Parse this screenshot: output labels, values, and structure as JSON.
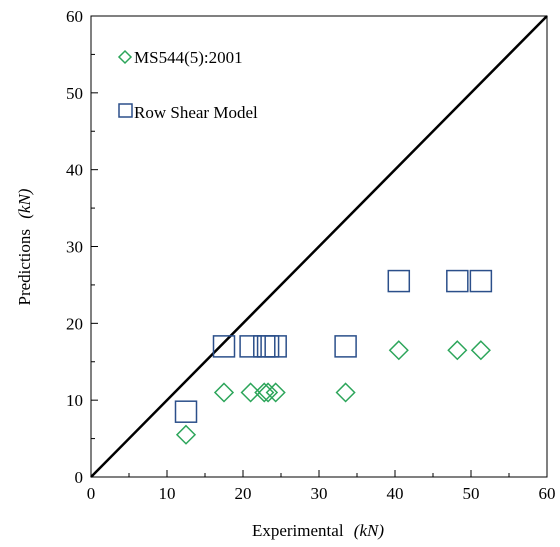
{
  "chart_data": {
    "type": "scatter",
    "xlabel": "Experimental",
    "xlabel_unit": "(kN)",
    "ylabel": "Predictions",
    "ylabel_unit": "(kN)",
    "xlim": [
      0,
      60
    ],
    "ylim": [
      0,
      60
    ],
    "x_ticks": [
      "0",
      "10",
      "20",
      "30",
      "40",
      "50",
      "60"
    ],
    "y_ticks": [
      "0",
      "10",
      "20",
      "30",
      "40",
      "50",
      "60"
    ],
    "grid": false,
    "legend_placement": "top-left",
    "reference_line": {
      "name": "",
      "x": [
        0,
        60
      ],
      "y": [
        0,
        60
      ]
    },
    "series": [
      {
        "name": "MS544(5):2001",
        "marker": "diamond",
        "color": "#2ca55a",
        "x": [
          12.5,
          17.5,
          21,
          22.8,
          23.3,
          24.3,
          33.5,
          40.5,
          48.2,
          51.3
        ],
        "y": [
          5.5,
          11,
          11,
          11,
          11,
          11,
          11,
          16.5,
          16.5,
          16.5
        ]
      },
      {
        "name": "Row Shear Model",
        "marker": "square",
        "color": "#2b4f8a",
        "x": [
          12.5,
          17.5,
          21,
          22.8,
          23.3,
          24.3,
          33.5,
          40.5,
          48.2,
          51.3
        ],
        "y": [
          8.5,
          17,
          17,
          17,
          17,
          17,
          17,
          25.5,
          25.5,
          25.5
        ]
      }
    ]
  }
}
